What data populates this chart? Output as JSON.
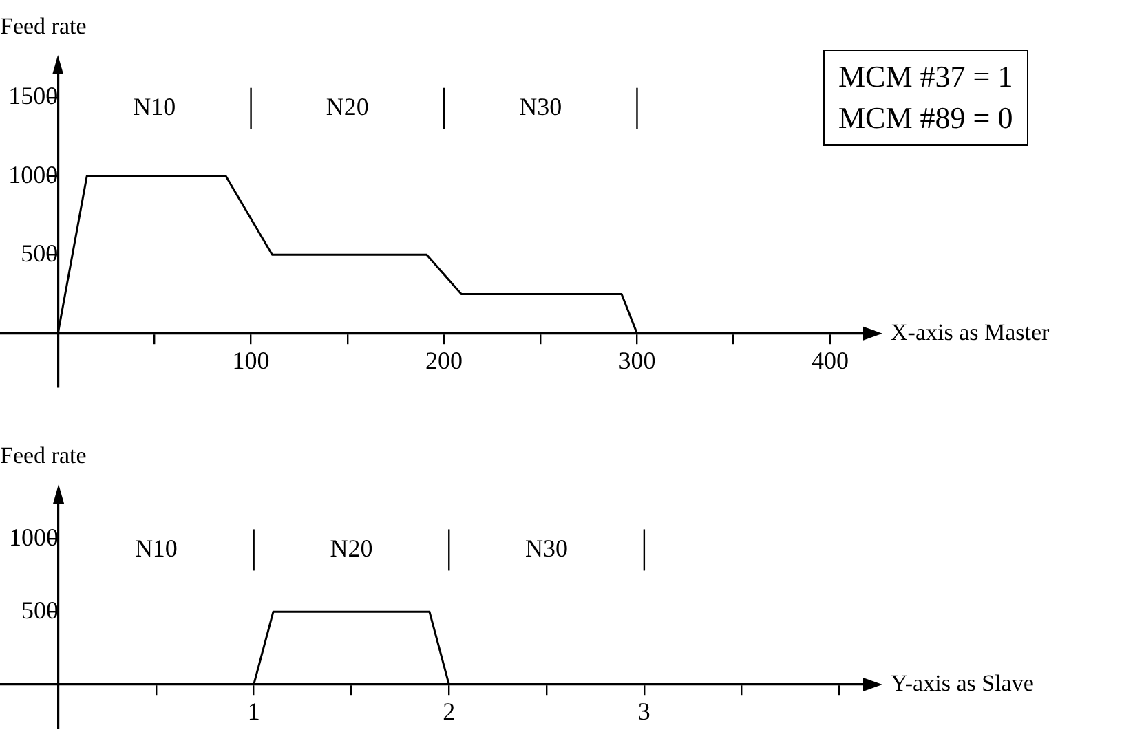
{
  "chart_data": [
    {
      "type": "line",
      "ylabel": "Feed rate",
      "xlabel": "X-axis as Master",
      "x": [
        0,
        15,
        87,
        111,
        191,
        209,
        292,
        300
      ],
      "series": [
        {
          "color": "#000000",
          "values": [
            0,
            1000,
            1000,
            500,
            500,
            250,
            250,
            0
          ]
        }
      ],
      "xlim": [
        -30,
        420
      ],
      "xticks": [
        {
          "value": 50,
          "label": null
        },
        100,
        {
          "value": 150,
          "label": null
        },
        200,
        {
          "value": 250,
          "label": null
        },
        300,
        {
          "value": 350,
          "label": null
        },
        400
      ],
      "ylim": [
        -340,
        1700
      ],
      "yticks": [
        500,
        1000,
        1500
      ],
      "ref_lines": [
        {
          "axis": "x",
          "value": 100
        },
        {
          "axis": "x",
          "value": 200
        },
        {
          "axis": "x",
          "value": 300
        }
      ],
      "annotations": [
        "N10",
        "N20",
        "N30",
        "MCM #37 = 1\nMCM #89 = 0"
      ],
      "marker": "none",
      "grid": false,
      "legend": false
    },
    {
      "type": "line",
      "ylabel": "Feed rate",
      "xlabel": "Y-axis as Slave",
      "x": [
        1,
        1.1,
        1.9,
        2
      ],
      "series": [
        {
          "color": "#000000",
          "values": [
            0,
            500,
            500,
            0
          ]
        }
      ],
      "xlim": [
        -0.3,
        4.15
      ],
      "xticks": [
        {
          "value": 0.5,
          "label": null
        },
        1,
        {
          "value": 1.5,
          "label": null
        },
        2,
        {
          "value": 2.5,
          "label": null
        },
        3,
        {
          "value": 3.5,
          "label": null
        },
        {
          "value": 4,
          "label": null
        }
      ],
      "ylim": [
        -300,
        1300
      ],
      "yticks": [
        500,
        1000
      ],
      "ref_lines": [
        {
          "axis": "x",
          "value": 1
        },
        {
          "axis": "x",
          "value": 2
        },
        {
          "axis": "x",
          "value": 3
        }
      ],
      "annotations": [
        "N10",
        "N20",
        "N30"
      ],
      "marker": "none",
      "grid": false,
      "legend": false
    }
  ]
}
